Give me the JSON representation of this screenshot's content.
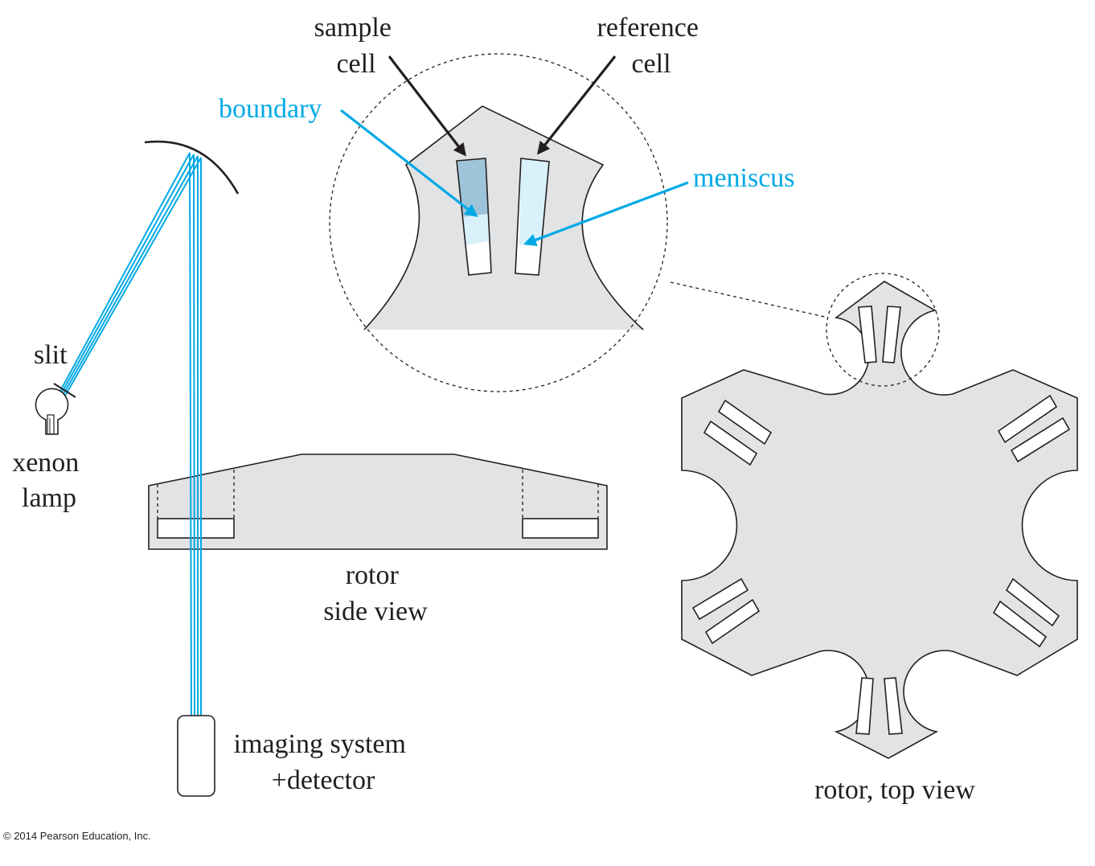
{
  "colors": {
    "accent": "#00a9e6",
    "rotor_fill": "#e2e3e4",
    "line": "#231f20",
    "sample_fill": "#9ec4d9",
    "solution_fill": "#d9f1fb"
  },
  "labels": {
    "sample_cell": [
      "sample",
      "cell"
    ],
    "reference_cell": [
      "reference",
      "cell"
    ],
    "boundary": "boundary",
    "meniscus": "meniscus",
    "slit": "slit",
    "xenon_lamp": [
      "xenon",
      "lamp"
    ],
    "rotor_side_view": [
      "rotor",
      "side view"
    ],
    "imaging_system": [
      "imaging system",
      "+detector"
    ],
    "rotor_top_view": "rotor, top view"
  },
  "copyright": "© 2014 Pearson Education, Inc."
}
